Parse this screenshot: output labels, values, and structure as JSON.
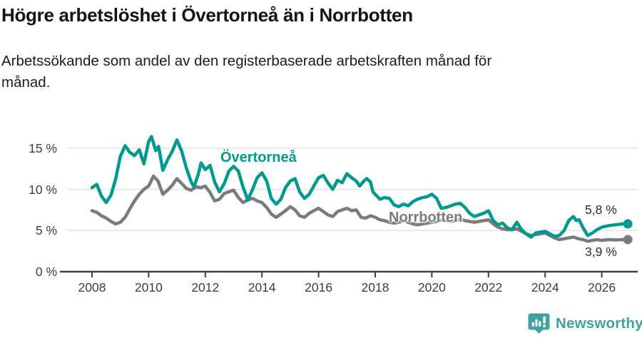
{
  "header": {
    "title": "Högre arbetslöshet i Övertorneå än i Norrbotten",
    "subtitle_line1": "Arbetssökande som andel av den registerbaserade arbetskraften månad för",
    "subtitle_line2": "månad."
  },
  "footer": {
    "brand": "Newsworthy"
  },
  "chart_data": {
    "type": "line",
    "title": "Högre arbetslöshet i Övertorneå än i Norrbotten",
    "xlabel": "",
    "ylabel": "",
    "unit": "%",
    "grid": "horizontal",
    "legend_position": "inline-labels",
    "xlim": [
      2006.9,
      2027.3
    ],
    "ylim": [
      0,
      17.5
    ],
    "x_ticks": [
      2008,
      2010,
      2012,
      2014,
      2016,
      2018,
      2020,
      2022,
      2024,
      2026
    ],
    "x_tick_labels": [
      "2008",
      "2010",
      "2012",
      "2014",
      "2016",
      "2018",
      "2020",
      "2022",
      "2024",
      "2026"
    ],
    "y_ticks": [
      0,
      5,
      10,
      15
    ],
    "y_tick_labels": [
      "0 %",
      "5 %",
      "10 %",
      "15 %"
    ],
    "colors": {
      "overtornea": "#009a8f",
      "norrbotten": "#7b7b7b",
      "grid": "#dedede",
      "axis": "#404040"
    },
    "series": [
      {
        "name": "Övertorneå",
        "color": "#009a8f",
        "end_value": 5.8,
        "end_label": "5,8 %",
        "points": [
          [
            2008.0,
            10.2
          ],
          [
            2008.17,
            10.6
          ],
          [
            2008.33,
            9.2
          ],
          [
            2008.5,
            8.4
          ],
          [
            2008.67,
            9.3
          ],
          [
            2008.83,
            11.2
          ],
          [
            2009.0,
            14.0
          ],
          [
            2009.17,
            15.3
          ],
          [
            2009.33,
            14.5
          ],
          [
            2009.5,
            14.1
          ],
          [
            2009.67,
            14.8
          ],
          [
            2009.83,
            13.1
          ],
          [
            2010.0,
            15.8
          ],
          [
            2010.1,
            16.4
          ],
          [
            2010.25,
            14.7
          ],
          [
            2010.35,
            15.2
          ],
          [
            2010.5,
            12.3
          ],
          [
            2010.67,
            13.6
          ],
          [
            2010.83,
            14.6
          ],
          [
            2011.0,
            16.0
          ],
          [
            2011.17,
            14.6
          ],
          [
            2011.33,
            12.6
          ],
          [
            2011.5,
            10.9
          ],
          [
            2011.6,
            10.3
          ],
          [
            2011.75,
            11.8
          ],
          [
            2011.85,
            13.2
          ],
          [
            2012.0,
            12.4
          ],
          [
            2012.17,
            12.9
          ],
          [
            2012.33,
            10.9
          ],
          [
            2012.5,
            9.7
          ],
          [
            2012.67,
            10.7
          ],
          [
            2012.83,
            12.2
          ],
          [
            2013.0,
            12.8
          ],
          [
            2013.17,
            12.2
          ],
          [
            2013.33,
            10.3
          ],
          [
            2013.5,
            8.7
          ],
          [
            2013.67,
            10.0
          ],
          [
            2013.83,
            11.4
          ],
          [
            2014.0,
            12.0
          ],
          [
            2014.17,
            11.0
          ],
          [
            2014.33,
            8.9
          ],
          [
            2014.5,
            8.2
          ],
          [
            2014.67,
            8.8
          ],
          [
            2014.83,
            10.2
          ],
          [
            2015.0,
            11.0
          ],
          [
            2015.17,
            11.3
          ],
          [
            2015.33,
            9.7
          ],
          [
            2015.5,
            8.9
          ],
          [
            2015.67,
            9.4
          ],
          [
            2015.83,
            10.4
          ],
          [
            2016.0,
            11.4
          ],
          [
            2016.17,
            11.7
          ],
          [
            2016.33,
            10.8
          ],
          [
            2016.5,
            10.0
          ],
          [
            2016.67,
            11.1
          ],
          [
            2016.83,
            10.8
          ],
          [
            2017.0,
            11.9
          ],
          [
            2017.17,
            11.4
          ],
          [
            2017.33,
            11.0
          ],
          [
            2017.45,
            10.4
          ],
          [
            2017.6,
            11.0
          ],
          [
            2017.7,
            11.3
          ],
          [
            2017.83,
            10.9
          ],
          [
            2017.92,
            9.7
          ],
          [
            2018.0,
            9.4
          ],
          [
            2018.17,
            8.8
          ],
          [
            2018.33,
            9.0
          ],
          [
            2018.5,
            8.9
          ],
          [
            2018.67,
            8.1
          ],
          [
            2018.83,
            7.9
          ],
          [
            2019.0,
            8.2
          ],
          [
            2019.17,
            8.0
          ],
          [
            2019.33,
            8.5
          ],
          [
            2019.5,
            8.8
          ],
          [
            2019.67,
            9.0
          ],
          [
            2019.83,
            9.1
          ],
          [
            2020.0,
            9.4
          ],
          [
            2020.17,
            8.9
          ],
          [
            2020.33,
            7.7
          ],
          [
            2020.5,
            7.8
          ],
          [
            2020.67,
            8.0
          ],
          [
            2020.83,
            8.2
          ],
          [
            2021.0,
            8.3
          ],
          [
            2021.17,
            7.8
          ],
          [
            2021.33,
            7.1
          ],
          [
            2021.5,
            6.7
          ],
          [
            2021.67,
            6.9
          ],
          [
            2021.83,
            7.1
          ],
          [
            2022.0,
            7.4
          ],
          [
            2022.17,
            6.2
          ],
          [
            2022.33,
            5.7
          ],
          [
            2022.5,
            5.9
          ],
          [
            2022.67,
            5.3
          ],
          [
            2022.83,
            5.1
          ],
          [
            2023.0,
            6.0
          ],
          [
            2023.17,
            5.1
          ],
          [
            2023.33,
            4.6
          ],
          [
            2023.5,
            4.2
          ],
          [
            2023.67,
            4.7
          ],
          [
            2023.83,
            4.8
          ],
          [
            2024.0,
            4.9
          ],
          [
            2024.17,
            4.6
          ],
          [
            2024.33,
            4.3
          ],
          [
            2024.5,
            4.4
          ],
          [
            2024.67,
            5.0
          ],
          [
            2024.83,
            6.2
          ],
          [
            2025.0,
            6.7
          ],
          [
            2025.1,
            6.2
          ],
          [
            2025.2,
            6.3
          ],
          [
            2025.33,
            5.4
          ],
          [
            2025.5,
            4.4
          ],
          [
            2025.67,
            4.7
          ],
          [
            2025.83,
            5.1
          ],
          [
            2026.0,
            5.4
          ],
          [
            2026.25,
            5.6
          ],
          [
            2026.5,
            5.7
          ],
          [
            2026.75,
            5.8
          ],
          [
            2026.92,
            5.8
          ]
        ]
      },
      {
        "name": "Norrbotten",
        "color": "#7b7b7b",
        "end_value": 3.9,
        "end_label": "3,9 %",
        "points": [
          [
            2008.0,
            7.4
          ],
          [
            2008.17,
            7.2
          ],
          [
            2008.33,
            6.8
          ],
          [
            2008.5,
            6.5
          ],
          [
            2008.67,
            6.1
          ],
          [
            2008.83,
            5.8
          ],
          [
            2009.0,
            6.0
          ],
          [
            2009.17,
            6.6
          ],
          [
            2009.33,
            7.6
          ],
          [
            2009.5,
            8.6
          ],
          [
            2009.67,
            9.4
          ],
          [
            2009.83,
            10.0
          ],
          [
            2010.0,
            10.4
          ],
          [
            2010.17,
            11.6
          ],
          [
            2010.33,
            11.0
          ],
          [
            2010.5,
            9.4
          ],
          [
            2010.67,
            9.9
          ],
          [
            2010.83,
            10.5
          ],
          [
            2011.0,
            11.3
          ],
          [
            2011.17,
            10.7
          ],
          [
            2011.33,
            10.1
          ],
          [
            2011.5,
            9.9
          ],
          [
            2011.67,
            10.3
          ],
          [
            2011.83,
            10.2
          ],
          [
            2012.0,
            10.4
          ],
          [
            2012.17,
            9.6
          ],
          [
            2012.33,
            8.6
          ],
          [
            2012.5,
            8.8
          ],
          [
            2012.67,
            9.5
          ],
          [
            2012.83,
            9.7
          ],
          [
            2013.0,
            9.9
          ],
          [
            2013.17,
            9.0
          ],
          [
            2013.33,
            8.4
          ],
          [
            2013.5,
            8.7
          ],
          [
            2013.67,
            8.9
          ],
          [
            2013.83,
            8.6
          ],
          [
            2014.0,
            8.4
          ],
          [
            2014.17,
            7.8
          ],
          [
            2014.33,
            7.0
          ],
          [
            2014.5,
            6.6
          ],
          [
            2014.67,
            7.0
          ],
          [
            2014.83,
            7.4
          ],
          [
            2015.0,
            7.9
          ],
          [
            2015.17,
            7.5
          ],
          [
            2015.33,
            6.8
          ],
          [
            2015.5,
            6.6
          ],
          [
            2015.67,
            7.1
          ],
          [
            2015.83,
            7.4
          ],
          [
            2016.0,
            7.7
          ],
          [
            2016.17,
            7.3
          ],
          [
            2016.33,
            6.9
          ],
          [
            2016.5,
            6.7
          ],
          [
            2016.67,
            7.3
          ],
          [
            2016.83,
            7.5
          ],
          [
            2017.0,
            7.7
          ],
          [
            2017.17,
            7.4
          ],
          [
            2017.33,
            7.5
          ],
          [
            2017.5,
            6.6
          ],
          [
            2017.67,
            6.5
          ],
          [
            2017.83,
            6.8
          ],
          [
            2018.0,
            6.6
          ],
          [
            2018.17,
            6.3
          ],
          [
            2018.33,
            6.2
          ],
          [
            2018.5,
            6.0
          ],
          [
            2018.67,
            5.9
          ],
          [
            2018.83,
            6.0
          ],
          [
            2019.0,
            6.2
          ],
          [
            2019.17,
            6.0
          ],
          [
            2019.33,
            5.8
          ],
          [
            2019.5,
            5.7
          ],
          [
            2019.67,
            5.8
          ],
          [
            2019.83,
            5.9
          ],
          [
            2020.0,
            6.0
          ],
          [
            2020.17,
            6.1
          ],
          [
            2020.33,
            6.3
          ],
          [
            2020.5,
            6.2
          ],
          [
            2020.67,
            6.1
          ],
          [
            2020.83,
            6.2
          ],
          [
            2021.0,
            6.4
          ],
          [
            2021.17,
            6.2
          ],
          [
            2021.33,
            6.1
          ],
          [
            2021.5,
            6.0
          ],
          [
            2021.67,
            6.1
          ],
          [
            2021.83,
            6.2
          ],
          [
            2022.0,
            6.3
          ],
          [
            2022.17,
            5.8
          ],
          [
            2022.33,
            5.4
          ],
          [
            2022.5,
            5.2
          ],
          [
            2022.67,
            5.1
          ],
          [
            2022.83,
            5.1
          ],
          [
            2023.0,
            5.2
          ],
          [
            2023.17,
            4.9
          ],
          [
            2023.33,
            4.6
          ],
          [
            2023.5,
            4.4
          ],
          [
            2023.67,
            4.5
          ],
          [
            2023.83,
            4.6
          ],
          [
            2024.0,
            4.7
          ],
          [
            2024.17,
            4.4
          ],
          [
            2024.33,
            4.1
          ],
          [
            2024.5,
            3.9
          ],
          [
            2024.67,
            4.0
          ],
          [
            2024.83,
            4.1
          ],
          [
            2025.0,
            4.2
          ],
          [
            2025.17,
            4.0
          ],
          [
            2025.33,
            3.9
          ],
          [
            2025.5,
            3.7
          ],
          [
            2025.67,
            3.8
          ],
          [
            2025.83,
            3.9
          ],
          [
            2026.0,
            3.8
          ],
          [
            2026.25,
            3.9
          ],
          [
            2026.5,
            3.85
          ],
          [
            2026.75,
            3.9
          ],
          [
            2026.92,
            3.9
          ]
        ]
      }
    ]
  }
}
